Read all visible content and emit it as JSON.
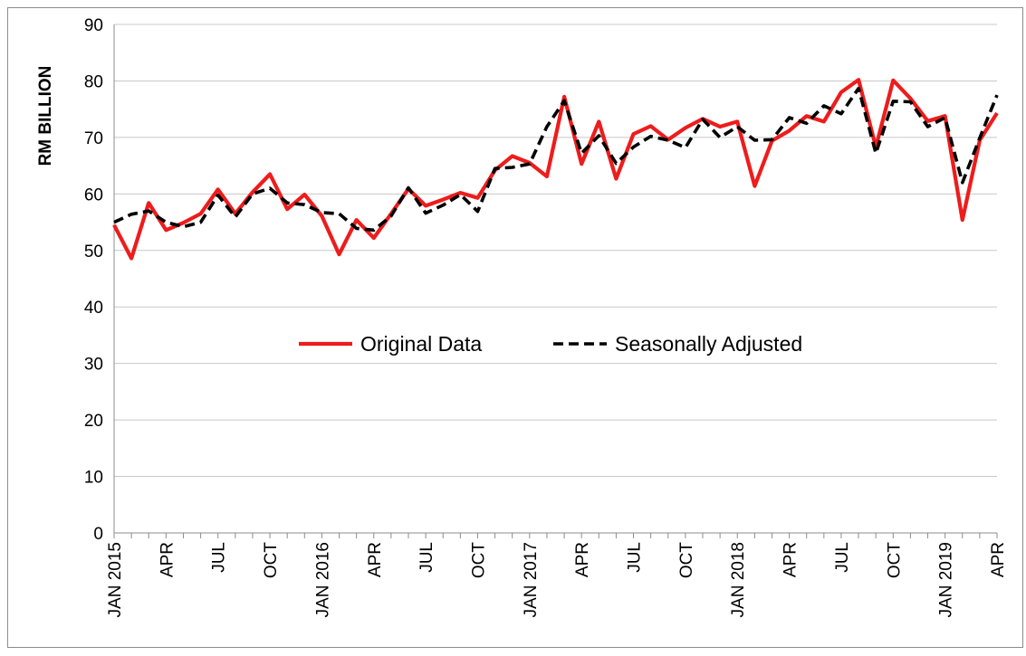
{
  "chart_data": {
    "type": "line",
    "title": "",
    "xlabel": "",
    "ylabel": "RM BILLION",
    "ylim": [
      0,
      90
    ],
    "yticks": [
      0,
      10,
      20,
      30,
      40,
      50,
      60,
      70,
      80,
      90
    ],
    "grid": true,
    "legend_position": "center",
    "x": [
      "2015-01",
      "2015-02",
      "2015-03",
      "2015-04",
      "2015-05",
      "2015-06",
      "2015-07",
      "2015-08",
      "2015-09",
      "2015-10",
      "2015-11",
      "2015-12",
      "2016-01",
      "2016-02",
      "2016-03",
      "2016-04",
      "2016-05",
      "2016-06",
      "2016-07",
      "2016-08",
      "2016-09",
      "2016-10",
      "2016-11",
      "2016-12",
      "2017-01",
      "2017-02",
      "2017-03",
      "2017-04",
      "2017-05",
      "2017-06",
      "2017-07",
      "2017-08",
      "2017-09",
      "2017-10",
      "2017-11",
      "2017-12",
      "2018-01",
      "2018-02",
      "2018-03",
      "2018-04",
      "2018-05",
      "2018-06",
      "2018-07",
      "2018-08",
      "2018-09",
      "2018-10",
      "2018-11",
      "2018-12",
      "2019-01",
      "2019-02",
      "2019-03",
      "2019-04"
    ],
    "x_tick_labels": [
      {
        "index": 0,
        "label": "JAN 2015"
      },
      {
        "index": 3,
        "label": "APR"
      },
      {
        "index": 6,
        "label": "JUL"
      },
      {
        "index": 9,
        "label": "OCT"
      },
      {
        "index": 12,
        "label": "JAN 2016"
      },
      {
        "index": 15,
        "label": "APR"
      },
      {
        "index": 18,
        "label": "JUL"
      },
      {
        "index": 21,
        "label": "OCT"
      },
      {
        "index": 24,
        "label": "JAN 2017"
      },
      {
        "index": 27,
        "label": "APR"
      },
      {
        "index": 30,
        "label": "JUL"
      },
      {
        "index": 33,
        "label": "OCT"
      },
      {
        "index": 36,
        "label": "JAN 2018"
      },
      {
        "index": 39,
        "label": "APR"
      },
      {
        "index": 42,
        "label": "JUL"
      },
      {
        "index": 45,
        "label": "OCT"
      },
      {
        "index": 48,
        "label": "JAN 2019"
      },
      {
        "index": 51,
        "label": "APR"
      }
    ],
    "series": [
      {
        "name": "Original Data",
        "color": "#ee1c1c",
        "style": "solid",
        "values": [
          54.5,
          48.6,
          58.4,
          53.6,
          54.9,
          56.5,
          60.8,
          56.5,
          60.3,
          63.5,
          57.3,
          59.9,
          56.1,
          49.3,
          55.4,
          52.2,
          56.5,
          60.9,
          57.9,
          59.0,
          60.2,
          59.3,
          64.2,
          66.7,
          65.5,
          63.1,
          77.2,
          65.3,
          72.8,
          62.7,
          70.6,
          72.0,
          69.6,
          71.7,
          73.3,
          71.9,
          72.8,
          61.4,
          69.4,
          71.2,
          73.8,
          72.8,
          78.0,
          80.2,
          68.3,
          80.1,
          76.9,
          72.9,
          73.8,
          55.4,
          69.5,
          74.3
        ]
      },
      {
        "name": "Seasonally Adjusted",
        "color": "#000000",
        "style": "dashed",
        "values": [
          55.0,
          56.4,
          57.0,
          55.0,
          54.2,
          55.0,
          59.8,
          55.9,
          60.0,
          61.0,
          58.4,
          58.1,
          56.7,
          56.5,
          53.9,
          53.6,
          56.1,
          61.1,
          56.6,
          58.0,
          59.9,
          56.9,
          64.5,
          64.7,
          65.3,
          71.9,
          76.5,
          67.2,
          70.3,
          65.4,
          68.3,
          70.2,
          69.5,
          68.2,
          73.2,
          70.0,
          71.9,
          69.5,
          69.6,
          73.5,
          72.5,
          75.6,
          74.2,
          78.7,
          67.2,
          76.4,
          76.3,
          71.9,
          73.5,
          62.0,
          69.9,
          77.5
        ]
      }
    ]
  }
}
